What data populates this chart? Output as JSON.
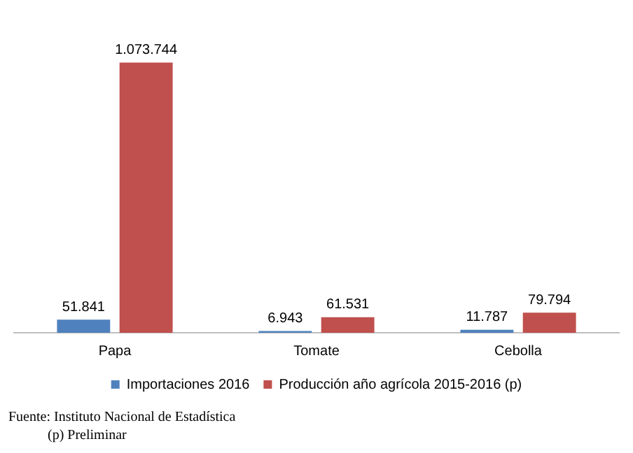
{
  "chart_data": {
    "type": "bar",
    "categories": [
      "Papa",
      "Tomate",
      "Cebolla"
    ],
    "series": [
      {
        "name": "Importaciones 2016",
        "color": "#4f81bd",
        "values": [
          51841,
          6943,
          11787
        ],
        "value_labels": [
          "51.841",
          "6.943",
          "11.787"
        ]
      },
      {
        "name": "Producción año agrícola 2015-2016 (p)",
        "color": "#c0504d",
        "values": [
          1073744,
          61531,
          79794
        ],
        "value_labels": [
          "1.073.744",
          "61.531",
          "79.794"
        ]
      }
    ],
    "tick_labels": "x",
    "grid": false,
    "legend": "bottom",
    "annotations": [
      "Fuente: Instituto Nacional de Estadística",
      "(p) Preliminar"
    ]
  }
}
